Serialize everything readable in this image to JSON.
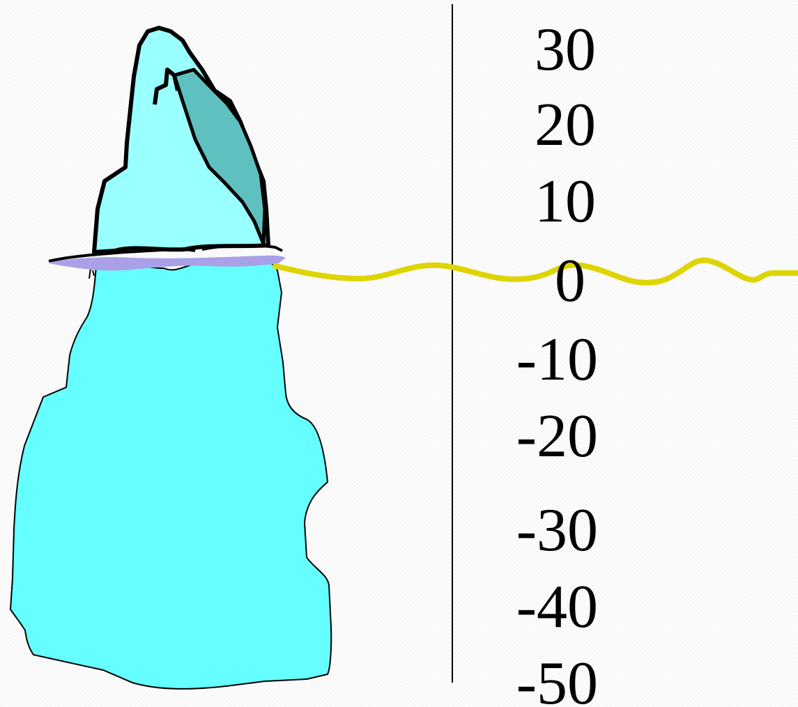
{
  "scale": {
    "ticks": [
      "30",
      "20",
      "10",
      "0",
      "-10",
      "-20",
      "-30",
      "-40",
      "-50"
    ]
  },
  "colors": {
    "iceberg_top": "#99ffff",
    "iceberg_shadow": "#5fc0c0",
    "iceberg_body": "#66ffff",
    "water_edge": "#a9a0e8",
    "waterline": "#ddd400",
    "outline": "#000000",
    "text": "#000000"
  }
}
